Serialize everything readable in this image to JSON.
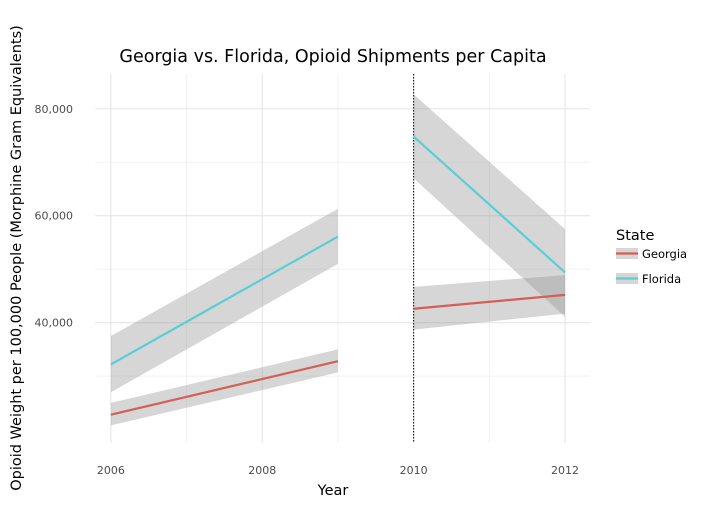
{
  "chart_data": {
    "type": "line",
    "title": "Georgia vs. Florida, Opioid Shipments per Capita",
    "xlabel": "Year",
    "ylabel": "Opioid Weight per 100,000 People (Morphine Gram Equivalents)",
    "xlim": [
      2005.79,
      2012.33
    ],
    "ylim": [
      17500,
      86500
    ],
    "x_ticks": [
      2006,
      2008,
      2010,
      2012
    ],
    "x_tick_labels": [
      "2006",
      "2008",
      "2010",
      "2012"
    ],
    "y_ticks": [
      40000,
      60000,
      80000
    ],
    "y_tick_labels": [
      "40,000",
      "60,000",
      "80,000"
    ],
    "grid": true,
    "vline": {
      "x": 2010,
      "style": "dotted"
    },
    "legend": {
      "title": "State",
      "position": "right"
    },
    "series": [
      {
        "name": "Georgia",
        "color": "#D45F55",
        "segments": [
          {
            "x": [
              2006,
              2009
            ],
            "y": [
              22800,
              32800
            ],
            "lower": [
              20800,
              30700
            ],
            "upper": [
              25000,
              35000
            ]
          },
          {
            "x": [
              2010,
              2012
            ],
            "y": [
              42600,
              45200
            ],
            "lower": [
              38700,
              41700
            ],
            "upper": [
              46700,
              48900
            ]
          }
        ]
      },
      {
        "name": "Florida",
        "color": "#5ACED6",
        "segments": [
          {
            "x": [
              2006,
              2009
            ],
            "y": [
              32200,
              56100
            ],
            "lower": [
              27000,
              51000
            ],
            "upper": [
              37500,
              61300
            ]
          },
          {
            "x": [
              2010,
              2012
            ],
            "y": [
              74800,
              49400
            ],
            "lower": [
              67000,
              41100
            ],
            "upper": [
              82700,
              57500
            ]
          }
        ]
      }
    ]
  }
}
